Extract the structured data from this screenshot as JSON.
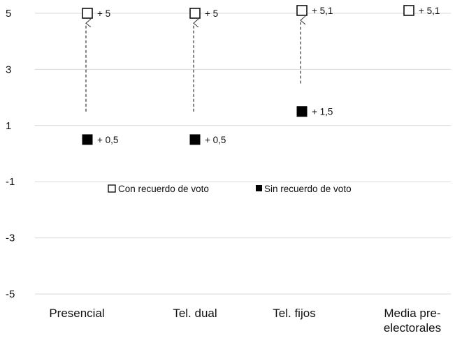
{
  "chart_data": {
    "type": "scatter",
    "title": "",
    "xlabel": "",
    "ylabel": "",
    "ylim": [
      -5,
      5
    ],
    "yticks": [
      "5",
      "3",
      "1",
      "-1",
      "-3",
      "-5"
    ],
    "grid": true,
    "legend_position": "center",
    "categories": [
      [
        "Presencial"
      ],
      [
        "Tel. dual"
      ],
      [
        "Tel. fijos"
      ],
      [
        "Media pre-",
        "electorales"
      ]
    ],
    "series": [
      {
        "name": "Con recuerdo de voto",
        "marker": "open-square",
        "values": [
          5,
          5,
          5.1,
          5.1
        ],
        "labels": [
          "+ 5",
          "+ 5",
          "+ 5,1",
          "+ 5,1"
        ]
      },
      {
        "name": "Sin recuerdo de voto",
        "marker": "filled-square",
        "values": [
          0.5,
          0.5,
          1.5,
          null
        ],
        "labels": [
          "+ 0,5",
          "+ 0,5",
          "+ 1,5",
          ""
        ]
      }
    ],
    "arrows": [
      {
        "category_index": 0,
        "from_series": 1,
        "to_series": 0
      },
      {
        "category_index": 1,
        "from_series": 1,
        "to_series": 0
      },
      {
        "category_index": 2,
        "from_series": 1,
        "to_series": 0
      }
    ]
  }
}
